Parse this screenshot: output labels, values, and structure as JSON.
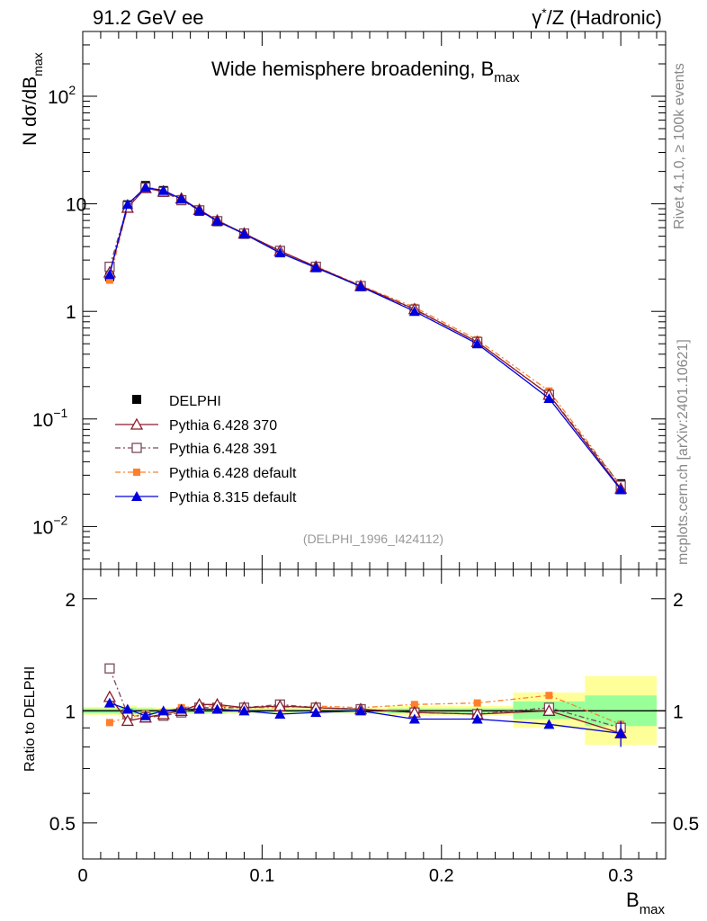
{
  "header": {
    "left": "91.2 GeV ee",
    "right_gamma": "γ",
    "right_star": "*",
    "right_rest": "/Z (Hadronic)"
  },
  "side_labels": {
    "rivet": "Rivet 4.1.0, ≥ 100k events",
    "mcplots": "mcplots.cern.ch [arXiv:2401.10621]"
  },
  "colors": {
    "delphi": "#000000",
    "p370": "#8b1a2b",
    "p391": "#7a4a5c",
    "pdef": "#ff7f2a",
    "p8": "#0000dd",
    "band_inner": "#99ff99",
    "band_outer": "#ffff99"
  },
  "chart_data": [
    {
      "type": "line",
      "log_y": true,
      "title": "Wide hemisphere broadening, B",
      "title_sub": "max",
      "ylabel_main": "N  dσ/dB",
      "ylabel_sub": "max",
      "analysis_tag": "(DELPHI_1996_I424112)",
      "xlim": [
        0,
        0.325
      ],
      "ylim": [
        0.004,
        400
      ],
      "y_tick_labels": [
        {
          "value": 0.01,
          "base": "10",
          "exp": "−2"
        },
        {
          "value": 0.1,
          "base": "10",
          "exp": "−1"
        },
        {
          "value": 1,
          "base": "1",
          "exp": ""
        },
        {
          "value": 10,
          "base": "10",
          "exp": ""
        },
        {
          "value": 100,
          "base": "10",
          "exp": "2"
        }
      ],
      "x": [
        0.015,
        0.025,
        0.035,
        0.045,
        0.055,
        0.065,
        0.075,
        0.09,
        0.11,
        0.13,
        0.155,
        0.185,
        0.22,
        0.26,
        0.3
      ],
      "series": [
        {
          "name": "DELPHI",
          "key": "delphi",
          "values": [
            2.1,
            9.8,
            14.8,
            13.3,
            10.9,
            8.5,
            6.8,
            5.2,
            3.55,
            2.55,
            1.7,
            1.05,
            0.52,
            0.165,
            0.025
          ]
        },
        {
          "name": "Pythia 6.428 370",
          "key": "p370",
          "values": [
            2.3,
            9.2,
            14.0,
            13.0,
            11.2,
            8.8,
            7.0,
            5.3,
            3.65,
            2.6,
            1.72,
            1.05,
            0.52,
            0.168,
            0.0225
          ]
        },
        {
          "name": "Pythia 6.428 391",
          "key": "p391",
          "values": [
            2.6,
            9.5,
            14.1,
            12.9,
            10.8,
            8.7,
            6.9,
            5.3,
            3.65,
            2.6,
            1.72,
            1.04,
            0.52,
            0.168,
            0.024
          ]
        },
        {
          "name": "Pythia 6.428 default",
          "key": "pdef",
          "values": [
            1.95,
            9.4,
            14.5,
            13.2,
            11.2,
            8.8,
            7.0,
            5.3,
            3.6,
            2.62,
            1.74,
            1.09,
            0.545,
            0.182,
            0.024
          ]
        },
        {
          "name": "Pythia 8.315 default",
          "key": "p8",
          "values": [
            2.2,
            9.9,
            14.2,
            13.3,
            11.1,
            8.7,
            6.9,
            5.25,
            3.5,
            2.55,
            1.7,
            1.0,
            0.5,
            0.155,
            0.022
          ]
        }
      ]
    },
    {
      "type": "line",
      "log_y": true,
      "ylabel": "Ratio to DELPHI",
      "xlabel_main": "B",
      "xlabel_sub": "max",
      "xlim": [
        0,
        0.325
      ],
      "ylim": [
        0.4,
        2.4
      ],
      "y_ticks": [
        0.5,
        1,
        2
      ],
      "y_tick_labels": [
        "0.5",
        "1",
        "2"
      ],
      "x_ticks": [
        0,
        0.1,
        0.2,
        0.3
      ],
      "x_tick_labels": [
        "0",
        "0.1",
        "0.2",
        "0.3"
      ],
      "bands": [
        {
          "x0": 0.0,
          "x1": 0.02,
          "in_lo": 0.985,
          "in_hi": 1.015,
          "out_lo": 0.975,
          "out_hi": 1.025
        },
        {
          "x0": 0.02,
          "x1": 0.03,
          "in_lo": 0.98,
          "in_hi": 1.02,
          "out_lo": 0.965,
          "out_hi": 1.035
        },
        {
          "x0": 0.03,
          "x1": 0.04,
          "in_lo": 0.985,
          "in_hi": 1.015,
          "out_lo": 0.975,
          "out_hi": 1.025
        },
        {
          "x0": 0.04,
          "x1": 0.08,
          "in_lo": 0.988,
          "in_hi": 1.012,
          "out_lo": 0.98,
          "out_hi": 1.02
        },
        {
          "x0": 0.08,
          "x1": 0.17,
          "in_lo": 0.99,
          "in_hi": 1.01,
          "out_lo": 0.982,
          "out_hi": 1.018
        },
        {
          "x0": 0.17,
          "x1": 0.24,
          "in_lo": 0.985,
          "in_hi": 1.015,
          "out_lo": 0.97,
          "out_hi": 1.03
        },
        {
          "x0": 0.24,
          "x1": 0.28,
          "in_lo": 0.95,
          "in_hi": 1.06,
          "out_lo": 0.9,
          "out_hi": 1.12
        },
        {
          "x0": 0.28,
          "x1": 0.32,
          "in_lo": 0.91,
          "in_hi": 1.1,
          "out_lo": 0.81,
          "out_hi": 1.24
        }
      ],
      "series": [
        {
          "name": "Pythia 6.428 370",
          "key": "p370",
          "values": [
            1.09,
            0.94,
            0.96,
            0.98,
            1.0,
            1.04,
            1.04,
            1.02,
            1.03,
            1.02,
            1.01,
            0.99,
            0.98,
            1.0,
            0.87
          ]
        },
        {
          "name": "Pythia 6.428 391",
          "key": "p391",
          "values": [
            1.3,
            0.98,
            0.96,
            0.97,
            0.99,
            1.02,
            1.02,
            1.02,
            1.04,
            1.02,
            1.01,
            0.99,
            0.98,
            1.02,
            0.9
          ]
        },
        {
          "name": "Pythia 6.428 default",
          "key": "pdef",
          "values": [
            0.93,
            0.96,
            0.98,
            0.99,
            1.02,
            1.03,
            1.03,
            1.02,
            1.02,
            1.03,
            1.02,
            1.04,
            1.05,
            1.1,
            0.92
          ]
        },
        {
          "name": "Pythia 8.315 default",
          "key": "p8",
          "values": [
            1.05,
            1.01,
            0.97,
            1.0,
            1.01,
            1.01,
            1.01,
            1.0,
            0.98,
            0.99,
            1.0,
            0.95,
            0.95,
            0.92,
            0.87
          ]
        }
      ],
      "p8_last_err": [
        0.8,
        0.94
      ]
    }
  ]
}
